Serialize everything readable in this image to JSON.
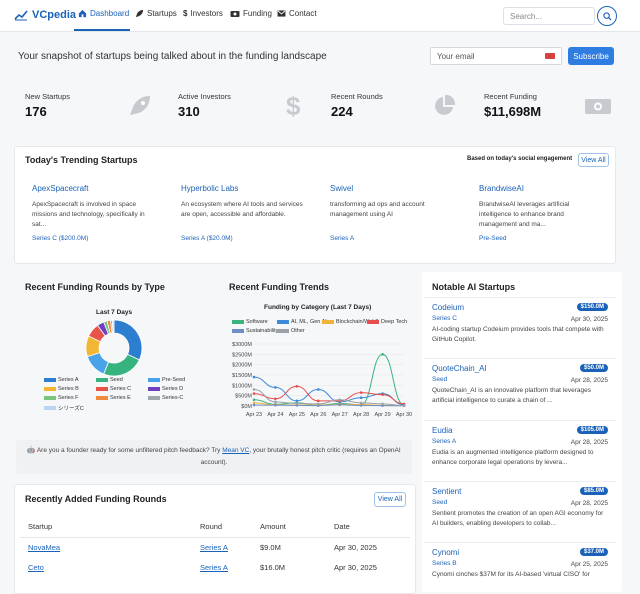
{
  "nav": {
    "brand": "VCpedia",
    "items": [
      {
        "label": "Dashboard",
        "icon": "home-icon",
        "active": true
      },
      {
        "label": "Startups",
        "icon": "rocket-icon"
      },
      {
        "label": "Investors",
        "icon": "dollar-icon"
      },
      {
        "label": "Funding",
        "icon": "cash-icon"
      },
      {
        "label": "Contact",
        "icon": "envelope-icon"
      }
    ],
    "search_placeholder": "Search..."
  },
  "hero": {
    "tagline": "Your snapshot of startups being talked about in the funding landscape",
    "email_placeholder": "Your email",
    "subscribe_label": "Subscribe"
  },
  "stats": [
    {
      "label": "New Startups",
      "value": "176",
      "icon": "rocket-icon"
    },
    {
      "label": "Active Investors",
      "value": "310",
      "icon": "dollar-icon"
    },
    {
      "label": "Recent Rounds",
      "value": "224",
      "icon": "pie-icon"
    },
    {
      "label": "Recent Funding",
      "value": "$11,698M",
      "icon": "money-icon"
    }
  ],
  "trending": {
    "title": "Today's Trending Startups",
    "note": "Based on today's social engagement",
    "view_all": "View All",
    "cards": [
      {
        "name": "ApexSpacecraft",
        "desc": "ApexSpacecraft is involved in space missions and technology, specifically in sat...",
        "round": "Series C ($200.0M)"
      },
      {
        "name": "Hyperbolic Labs",
        "desc": "An ecosystem where AI tools and services are open, accessible and affordable.",
        "round": "Series A ($20.0M)"
      },
      {
        "name": "Swivel",
        "desc": "transforming ad ops and account management using AI",
        "round": "Series A"
      },
      {
        "name": "BrandwiseAI",
        "desc": "BrandwiseAI leverages artificial intelligence to enhance brand management and ma...",
        "round": "Pre-Seed"
      }
    ]
  },
  "by_type": {
    "title": "Recent Funding Rounds by Type",
    "chart_title": "Last 7 Days",
    "legend": [
      "Series A",
      "Seed",
      "Pre-Seed",
      "Series B",
      "Series C",
      "Series D",
      "Series F",
      "Series E",
      "Series-C",
      "シリーズC"
    ]
  },
  "trends": {
    "title": "Recent Funding Trends",
    "chart_title": "Funding by Category (Last 7 Days)",
    "legend": [
      "Software",
      "AI, ML, Gen AI",
      "Blockchain/Web3",
      "Deep Tech",
      "Sustainability",
      "Other"
    ]
  },
  "chart_data": [
    {
      "type": "pie",
      "title": "Last 7 Days",
      "categories": [
        "Series A",
        "Seed",
        "Pre-Seed",
        "Series B",
        "Series C",
        "Series D",
        "Series F",
        "Series E",
        "Series-C",
        "シリーズC"
      ],
      "values": [
        32,
        24,
        14,
        12,
        8,
        4,
        2,
        2,
        1,
        1
      ],
      "colors": [
        "#2c7fd0",
        "#36b37e",
        "#4aa3e8",
        "#f2b632",
        "#e8534a",
        "#6f42c1",
        "#7bc47f",
        "#f08a3c",
        "#a0a7af",
        "#b9d5ef"
      ],
      "legend_position": "bottom"
    },
    {
      "type": "line",
      "title": "Funding by Category (Last 7 Days)",
      "categories": [
        "Apr 23",
        "Apr 24",
        "Apr 25",
        "Apr 26",
        "Apr 27",
        "Apr 28",
        "Apr 29",
        "Apr 30"
      ],
      "y_ticks": [
        "$0M",
        "$500M",
        "$1000M",
        "$1500M",
        "$2000M",
        "$2500M",
        "$3000M"
      ],
      "ylim": [
        0,
        3000
      ],
      "grid": true,
      "series": [
        {
          "name": "Software",
          "color": "#3ab37d",
          "values": [
            300,
            80,
            150,
            40,
            120,
            60,
            2500,
            50
          ]
        },
        {
          "name": "AI, ML, Gen AI",
          "color": "#3c8ad8",
          "values": [
            1400,
            900,
            250,
            800,
            200,
            400,
            600,
            60
          ]
        },
        {
          "name": "Blockchain/Web3",
          "color": "#f0b43a",
          "values": [
            150,
            60,
            50,
            40,
            80,
            70,
            30,
            20
          ]
        },
        {
          "name": "Deep Tech",
          "color": "#e84d4d",
          "values": [
            600,
            350,
            950,
            250,
            250,
            650,
            550,
            100
          ]
        },
        {
          "name": "Sustainability",
          "color": "#6e8fc2",
          "values": [
            50,
            40,
            30,
            20,
            60,
            30,
            20,
            10
          ]
        },
        {
          "name": "Other",
          "color": "#9aa1a9",
          "values": [
            800,
            200,
            120,
            100,
            300,
            150,
            100,
            20
          ]
        }
      ]
    }
  ],
  "notable": {
    "title": "Notable AI Startups",
    "items": [
      {
        "name": "Codeium",
        "amount": "$150.0M",
        "round": "Series C",
        "date": "Apr 30, 2025",
        "desc": "AI-coding startup Codeium provides tools that compete with GitHub Copilot."
      },
      {
        "name": "QuoteChain_AI",
        "amount": "$50.0M",
        "round": "Seed",
        "date": "Apr 28, 2025",
        "desc": "QuoteChain_AI is an innovative platform that leverages artificial intelligence to curate a chain of ..."
      },
      {
        "name": "Eudia",
        "amount": "$105.0M",
        "round": "Series A",
        "date": "Apr 28, 2025",
        "desc": "Eudia is an augmented intelligence platform designed to enhance corporate legal operations by levera..."
      },
      {
        "name": "Sentient",
        "amount": "$85.0M",
        "round": "Seed",
        "date": "Apr 28, 2025",
        "desc": "Sentient promotes the creation of an open AGI economy for AI builders, enabling developers to collab..."
      },
      {
        "name": "Cynomi",
        "amount": "$37.0M",
        "round": "Series B",
        "date": "Apr 25, 2025",
        "desc": "Cynomi cinches $37M for its AI-based 'virtual CISO' for"
      }
    ]
  },
  "feedback": {
    "prefix": "Are you a founder ready for some unfiltered pitch feedback? Try ",
    "link": "Mean VC",
    "suffix": ", your brutally honest pitch critic (requires an OpenAI account)."
  },
  "recent_rounds": {
    "title": "Recently Added Funding Rounds",
    "view_all": "View All",
    "columns": [
      "Startup",
      "Round",
      "Amount",
      "Date"
    ],
    "rows": [
      {
        "startup": "NovaMea",
        "round": "Series A",
        "amount": "$9.0M",
        "date": "Apr 30, 2025"
      },
      {
        "startup": "Ceto",
        "round": "Series A",
        "amount": "$16.0M",
        "date": "Apr 30, 2025"
      }
    ]
  }
}
